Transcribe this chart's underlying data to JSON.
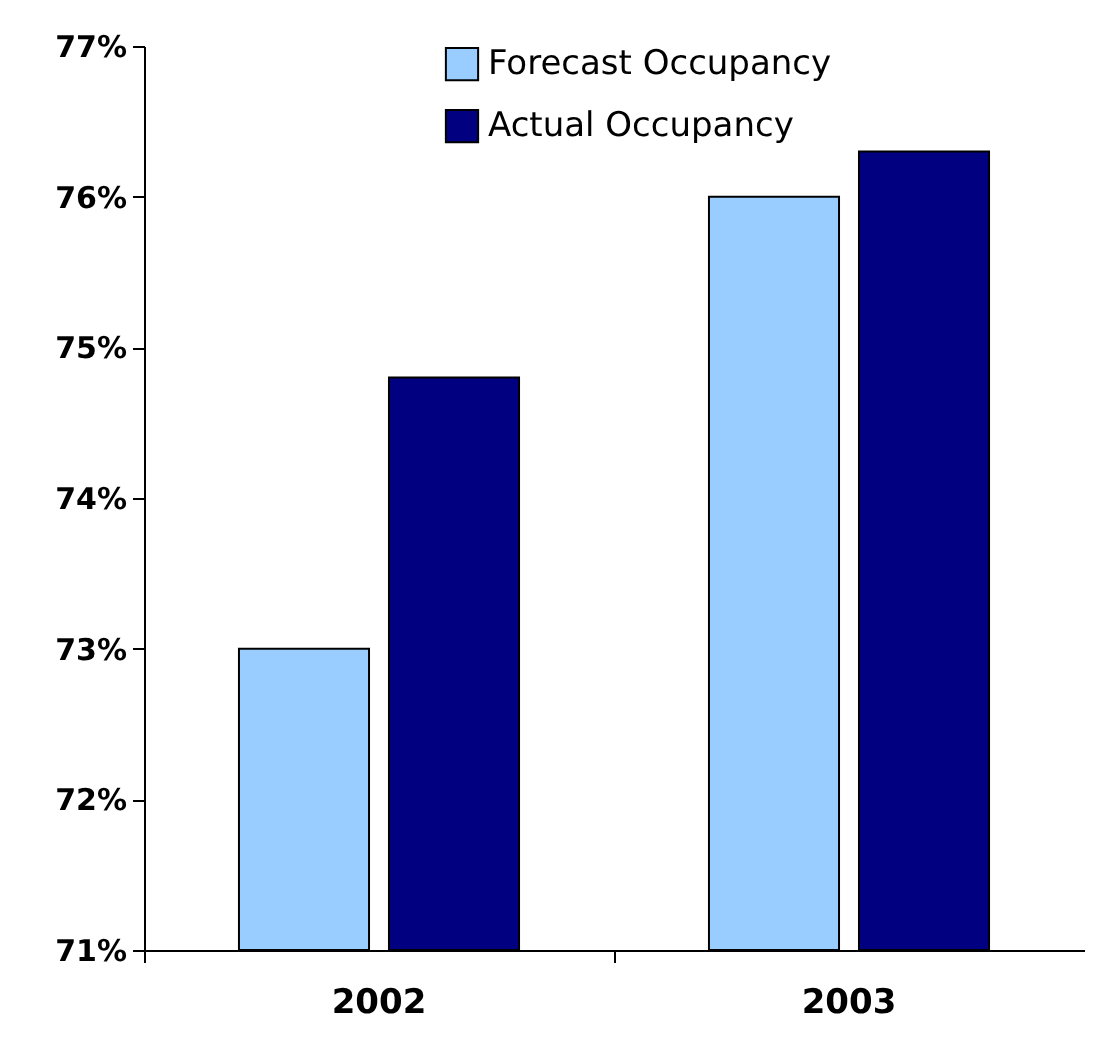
{
  "chart_data": {
    "type": "bar",
    "categories": [
      "2002",
      "2003"
    ],
    "series": [
      {
        "name": "Forecast Occupancy",
        "color": "#99ccff",
        "values": [
          73.0,
          76.0
        ]
      },
      {
        "name": "Actual Occupancy",
        "color": "#000080",
        "values": [
          74.8,
          76.3
        ]
      }
    ],
    "ylim": [
      71,
      77
    ],
    "yticks": [
      {
        "value": 71,
        "label": "71%"
      },
      {
        "value": 72,
        "label": "72%"
      },
      {
        "value": 73,
        "label": "73%"
      },
      {
        "value": 74,
        "label": "74%"
      },
      {
        "value": 75,
        "label": "75%"
      },
      {
        "value": 76,
        "label": "76%"
      },
      {
        "value": 77,
        "label": "77%"
      }
    ],
    "grid": false,
    "legend": "top right"
  }
}
